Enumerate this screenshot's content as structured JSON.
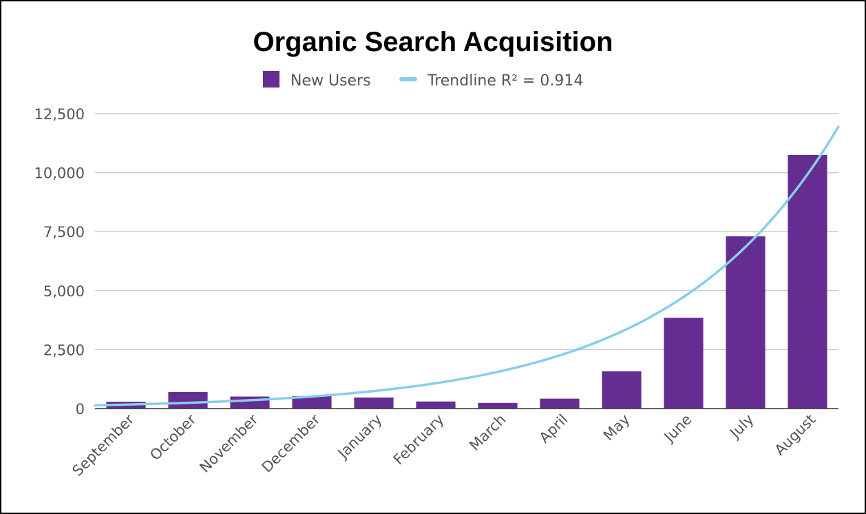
{
  "chart_data": {
    "type": "bar",
    "title": "Organic Search Acquisition",
    "xlabel": "",
    "ylabel": "",
    "categories": [
      "September",
      "October",
      "November",
      "December",
      "January",
      "February",
      "March",
      "April",
      "May",
      "June",
      "July",
      "August"
    ],
    "series": [
      {
        "name": "New Users",
        "type": "bar",
        "values": [
          290,
          700,
          510,
          530,
          470,
          300,
          240,
          420,
          1580,
          3850,
          7300,
          10750
        ],
        "color": "#652d91"
      }
    ],
    "trendline": {
      "name": "Trendline R² = 0.914",
      "type": "exponential",
      "r_squared": 0.914,
      "start_value": 140,
      "end_value": 11950,
      "color": "#87ceeb"
    },
    "yticks": [
      "0",
      "2,500",
      "5,000",
      "7,500",
      "10,000",
      "12,500"
    ],
    "ytick_values": [
      0,
      2500,
      5000,
      7500,
      10000,
      12500
    ],
    "ylim": [
      0,
      12500
    ],
    "grid": true,
    "legend_position": "top-center"
  }
}
